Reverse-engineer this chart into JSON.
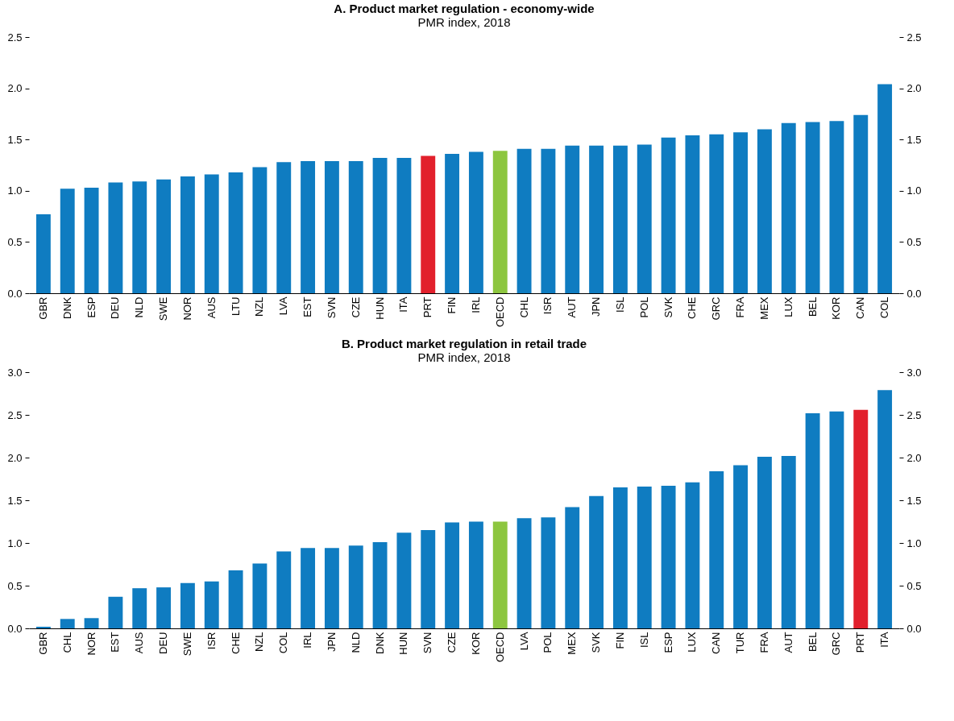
{
  "chart_data": [
    {
      "type": "bar",
      "title": "A. Product market regulation - economy-wide",
      "subtitle": "PMR index, 2018",
      "categories": [
        "GBR",
        "DNK",
        "ESP",
        "DEU",
        "NLD",
        "SWE",
        "NOR",
        "AUS",
        "LTU",
        "NZL",
        "LVA",
        "EST",
        "SVN",
        "CZE",
        "HUN",
        "ITA",
        "PRT",
        "FIN",
        "IRL",
        "OECD",
        "CHL",
        "ISR",
        "AUT",
        "JPN",
        "ISL",
        "POL",
        "SVK",
        "CHE",
        "GRC",
        "FRA",
        "MEX",
        "LUX",
        "BEL",
        "KOR",
        "CAN",
        "COL"
      ],
      "values": [
        0.77,
        1.02,
        1.03,
        1.08,
        1.09,
        1.11,
        1.14,
        1.16,
        1.18,
        1.23,
        1.28,
        1.29,
        1.29,
        1.29,
        1.32,
        1.32,
        1.34,
        1.36,
        1.38,
        1.39,
        1.41,
        1.41,
        1.44,
        1.44,
        1.44,
        1.45,
        1.52,
        1.54,
        1.55,
        1.57,
        1.6,
        1.66,
        1.67,
        1.68,
        1.74,
        2.04
      ],
      "colors": [
        "#0f7cc1",
        "#0f7cc1",
        "#0f7cc1",
        "#0f7cc1",
        "#0f7cc1",
        "#0f7cc1",
        "#0f7cc1",
        "#0f7cc1",
        "#0f7cc1",
        "#0f7cc1",
        "#0f7cc1",
        "#0f7cc1",
        "#0f7cc1",
        "#0f7cc1",
        "#0f7cc1",
        "#0f7cc1",
        "#e2202c",
        "#0f7cc1",
        "#0f7cc1",
        "#8dc63f",
        "#0f7cc1",
        "#0f7cc1",
        "#0f7cc1",
        "#0f7cc1",
        "#0f7cc1",
        "#0f7cc1",
        "#0f7cc1",
        "#0f7cc1",
        "#0f7cc1",
        "#0f7cc1",
        "#0f7cc1",
        "#0f7cc1",
        "#0f7cc1",
        "#0f7cc1",
        "#0f7cc1",
        "#0f7cc1"
      ],
      "ylim": [
        0,
        2.5
      ],
      "yticks": [
        {
          "value": 0,
          "label": "0.0"
        },
        {
          "value": 0.5,
          "label": "0.5"
        },
        {
          "value": 1,
          "label": "1.0"
        },
        {
          "value": 1.5,
          "label": "1.5"
        },
        {
          "value": 2,
          "label": "2.0"
        },
        {
          "value": 2.5,
          "label": "2.5"
        }
      ],
      "y2lim": [
        0,
        2.5
      ],
      "y2ticks": [
        {
          "value": 0,
          "label": "0.0"
        },
        {
          "value": 0.5,
          "label": "0.5"
        },
        {
          "value": 1,
          "label": "1.0"
        },
        {
          "value": 1.5,
          "label": "1.5"
        },
        {
          "value": 2,
          "label": "2.0"
        },
        {
          "value": 2.5,
          "label": "2.5"
        }
      ]
    },
    {
      "type": "bar",
      "title": "B. Product market regulation in retail trade",
      "subtitle": "PMR index, 2018",
      "categories": [
        "GBR",
        "CHL",
        "NOR",
        "EST",
        "AUS",
        "DEU",
        "SWE",
        "ISR",
        "CHE",
        "NZL",
        "COL",
        "IRL",
        "JPN",
        "NLD",
        "DNK",
        "HUN",
        "SVN",
        "CZE",
        "KOR",
        "OECD",
        "LVA",
        "POL",
        "MEX",
        "SVK",
        "FIN",
        "ISL",
        "ESP",
        "LUX",
        "CAN",
        "TUR",
        "FRA",
        "AUT",
        "BEL",
        "GRC",
        "PRT",
        "ITA"
      ],
      "values": [
        0.02,
        0.11,
        0.12,
        0.37,
        0.47,
        0.48,
        0.53,
        0.55,
        0.68,
        0.76,
        0.9,
        0.94,
        0.94,
        0.97,
        1.01,
        1.12,
        1.15,
        1.24,
        1.25,
        1.25,
        1.29,
        1.3,
        1.42,
        1.55,
        1.65,
        1.66,
        1.67,
        1.71,
        1.84,
        1.91,
        2.01,
        2.02,
        2.52,
        2.54,
        2.56,
        2.79
      ],
      "colors": [
        "#0f7cc1",
        "#0f7cc1",
        "#0f7cc1",
        "#0f7cc1",
        "#0f7cc1",
        "#0f7cc1",
        "#0f7cc1",
        "#0f7cc1",
        "#0f7cc1",
        "#0f7cc1",
        "#0f7cc1",
        "#0f7cc1",
        "#0f7cc1",
        "#0f7cc1",
        "#0f7cc1",
        "#0f7cc1",
        "#0f7cc1",
        "#0f7cc1",
        "#0f7cc1",
        "#8dc63f",
        "#0f7cc1",
        "#0f7cc1",
        "#0f7cc1",
        "#0f7cc1",
        "#0f7cc1",
        "#0f7cc1",
        "#0f7cc1",
        "#0f7cc1",
        "#0f7cc1",
        "#0f7cc1",
        "#0f7cc1",
        "#0f7cc1",
        "#0f7cc1",
        "#0f7cc1",
        "#e2202c",
        "#0f7cc1"
      ],
      "ylim": [
        0,
        3
      ],
      "yticks": [
        {
          "value": 0,
          "label": "0.0"
        },
        {
          "value": 0.5,
          "label": "0.5"
        },
        {
          "value": 1,
          "label": "1.0"
        },
        {
          "value": 1.5,
          "label": "1.5"
        },
        {
          "value": 2,
          "label": "2.0"
        },
        {
          "value": 2.5,
          "label": "2.5"
        },
        {
          "value": 3,
          "label": "3.0"
        }
      ],
      "y2lim": [
        0,
        3
      ],
      "y2ticks": [
        {
          "value": 0,
          "label": "0.0"
        },
        {
          "value": 0.5,
          "label": "0.5"
        },
        {
          "value": 1,
          "label": "1.0"
        },
        {
          "value": 1.5,
          "label": "1.5"
        },
        {
          "value": 2,
          "label": "2.0"
        },
        {
          "value": 2.5,
          "label": "2.5"
        },
        {
          "value": 3,
          "label": "3.0"
        }
      ]
    }
  ]
}
